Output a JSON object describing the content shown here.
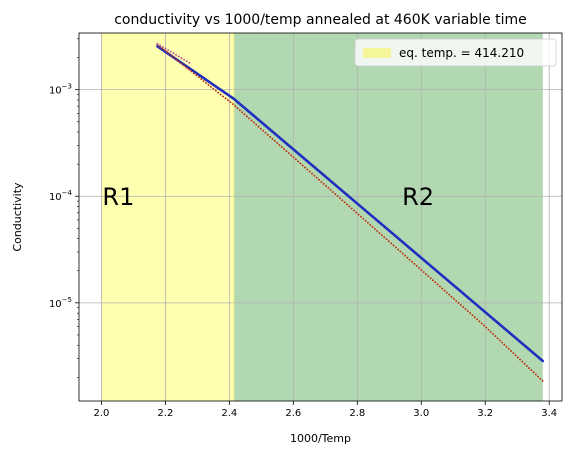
{
  "chart_data": {
    "type": "line",
    "title": "conductivity vs 1000/temp annealed at 460K variable time",
    "xlabel": "1000/Temp",
    "ylabel": "Conductivity",
    "xlim": [
      1.93,
      3.44
    ],
    "ylim": [
      1.2e-06,
      0.0034
    ],
    "yscale": "log",
    "grid": true,
    "x_ticks": [
      2.0,
      2.2,
      2.4,
      2.6,
      2.8,
      3.0,
      3.2,
      3.4
    ],
    "x_tick_labels": [
      "2.0",
      "2.2",
      "2.4",
      "2.6",
      "2.8",
      "3.0",
      "3.2",
      "3.4"
    ],
    "y_ticks": [
      1e-05,
      0.0001,
      0.001
    ],
    "y_tick_base": "10",
    "y_tick_exponents": [
      "−5",
      "−4",
      "−3"
    ],
    "regions": [
      {
        "label": "R1",
        "x_range": [
          2.0,
          2.414
        ],
        "color": "#ffffb0"
      },
      {
        "label": "R2",
        "x_range": [
          2.414,
          3.38
        ],
        "color": "#b2d8b2"
      }
    ],
    "vline": {
      "x": 2.414,
      "name": "eq. temp. = 414.210"
    },
    "legend": {
      "placement": "top-right",
      "entries": [
        {
          "label": "eq. temp. = 414.210",
          "color": "#f5f59a"
        }
      ]
    },
    "series": [
      {
        "style": "solid",
        "color": "#1f2fbf",
        "x": [
          2.175,
          2.414,
          3.38
        ],
        "y": [
          0.00255,
          0.00082,
          2.85e-06
        ]
      },
      {
        "style": "dotted",
        "color": "#c03010",
        "x": [
          2.175,
          2.414,
          2.8,
          3.2,
          3.38
        ],
        "y": [
          0.00265,
          0.00072,
          6.9e-05,
          6e-06,
          1.85e-06
        ]
      },
      {
        "style": "dotted",
        "color": "#b05090",
        "x": [
          2.175,
          2.28
        ],
        "y": [
          0.0027,
          0.00175
        ]
      }
    ]
  }
}
